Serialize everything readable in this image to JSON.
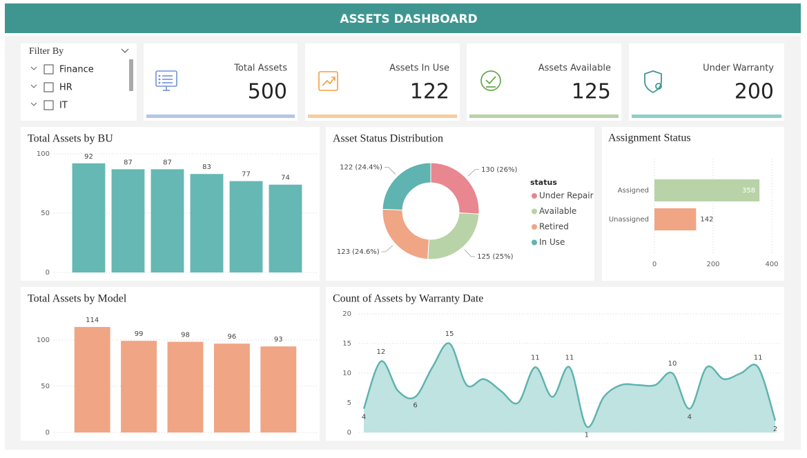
{
  "header": {
    "title": "ASSETS DASHBOARD"
  },
  "filter": {
    "title": "Filter By",
    "options": [
      "Finance",
      "HR",
      "IT"
    ]
  },
  "kpis": [
    {
      "label": "Total Assets",
      "value": 500,
      "color": "#b4c7e7"
    },
    {
      "label": "Assets In Use",
      "value": 122,
      "color": "#f9cc9d"
    },
    {
      "label": "Assets Available",
      "value": 125,
      "color": "#b8d3a8"
    },
    {
      "label": "Under Warranty",
      "value": 200,
      "color": "#8ecfc9"
    }
  ],
  "chart_data": [
    {
      "type": "bar",
      "title": "Total Assets by BU",
      "categories": [
        null,
        null,
        null,
        null,
        null,
        null
      ],
      "values": [
        92,
        87,
        87,
        83,
        77,
        74
      ],
      "color": "#66b8b4",
      "ylim": [
        0,
        100
      ],
      "yticks": [
        0,
        50,
        100
      ],
      "grid": true
    },
    {
      "type": "bar",
      "title": "Total Assets by Model",
      "categories": [
        null,
        null,
        null,
        null,
        null
      ],
      "values": [
        114,
        99,
        98,
        96,
        93
      ],
      "color": "#f0a585",
      "ylim": [
        0,
        120
      ],
      "yticks": [
        0,
        50,
        100
      ],
      "grid": true
    },
    {
      "type": "pie",
      "donut": true,
      "title": "Asset Status Distribution",
      "legend_title": "status",
      "categories": [
        "Under Repair",
        "Available",
        "Retired",
        "In Use"
      ],
      "values": [
        130,
        125,
        123,
        122
      ],
      "value_labels": [
        "130 (26%)",
        "125 (25%)",
        "123 (24.6%)",
        "122 (24.4%)"
      ],
      "colors": [
        "#e8878f",
        "#b8d3a8",
        "#f0a585",
        "#5fb3b0"
      ]
    },
    {
      "type": "hbar",
      "title": "Assignment Status",
      "categories": [
        "Assigned",
        "Unassigned"
      ],
      "values": [
        358,
        142
      ],
      "colors": [
        "#b8d3a8",
        "#f0a585"
      ],
      "xlim": [
        0,
        400
      ],
      "xticks": [
        0,
        200,
        400
      ],
      "grid": true
    },
    {
      "type": "area",
      "title": "Count of Assets by Warranty Date",
      "categories": [
        null,
        null,
        null,
        null,
        null,
        null,
        null,
        null,
        null,
        null,
        null,
        null,
        null,
        null,
        null,
        null,
        null,
        null,
        null,
        null,
        null,
        null,
        null,
        null,
        null
      ],
      "values": [
        4,
        12,
        7,
        6,
        11,
        15,
        8,
        9,
        7,
        5,
        11,
        6,
        11,
        1,
        6,
        8,
        8,
        8,
        10,
        4,
        11,
        9,
        10,
        11,
        2
      ],
      "value_labels": [
        "4",
        "12",
        null,
        "6",
        null,
        "15",
        null,
        null,
        null,
        null,
        "11",
        null,
        "11",
        "1",
        null,
        null,
        null,
        null,
        "10",
        "4",
        null,
        null,
        null,
        "11",
        "2"
      ],
      "color": "#5fb3b0",
      "fill": "#bfe3e0",
      "ylim": [
        0,
        20
      ],
      "yticks": [
        0,
        5,
        10,
        15,
        20
      ],
      "grid": true
    }
  ]
}
